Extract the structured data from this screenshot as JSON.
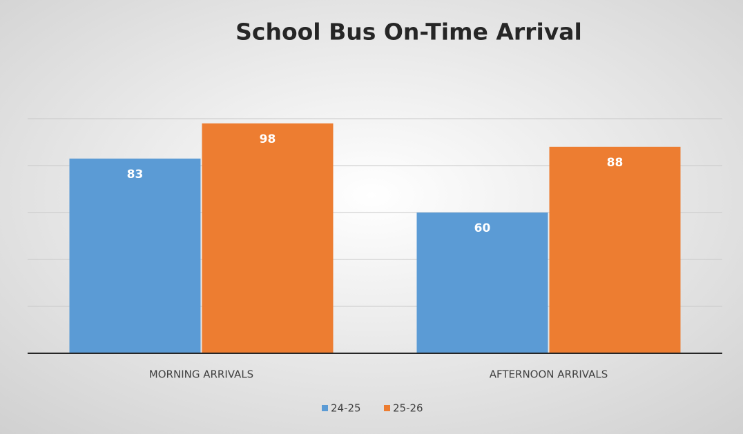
{
  "chart_data": {
    "type": "bar",
    "title": "School Bus On-Time Arrival",
    "categories": [
      "MORNING ARRIVALS",
      "AFTERNOON ARRIVALS"
    ],
    "series": [
      {
        "name": "24-25",
        "color": "#5b9bd5",
        "values": [
          83,
          60
        ]
      },
      {
        "name": "25-26",
        "color": "#ed7d31",
        "values": [
          98,
          88
        ]
      }
    ],
    "ylim": [
      0,
      100
    ],
    "yticks": [
      0,
      20,
      40,
      60,
      80,
      100
    ],
    "grid": true,
    "legend": "bottom"
  }
}
